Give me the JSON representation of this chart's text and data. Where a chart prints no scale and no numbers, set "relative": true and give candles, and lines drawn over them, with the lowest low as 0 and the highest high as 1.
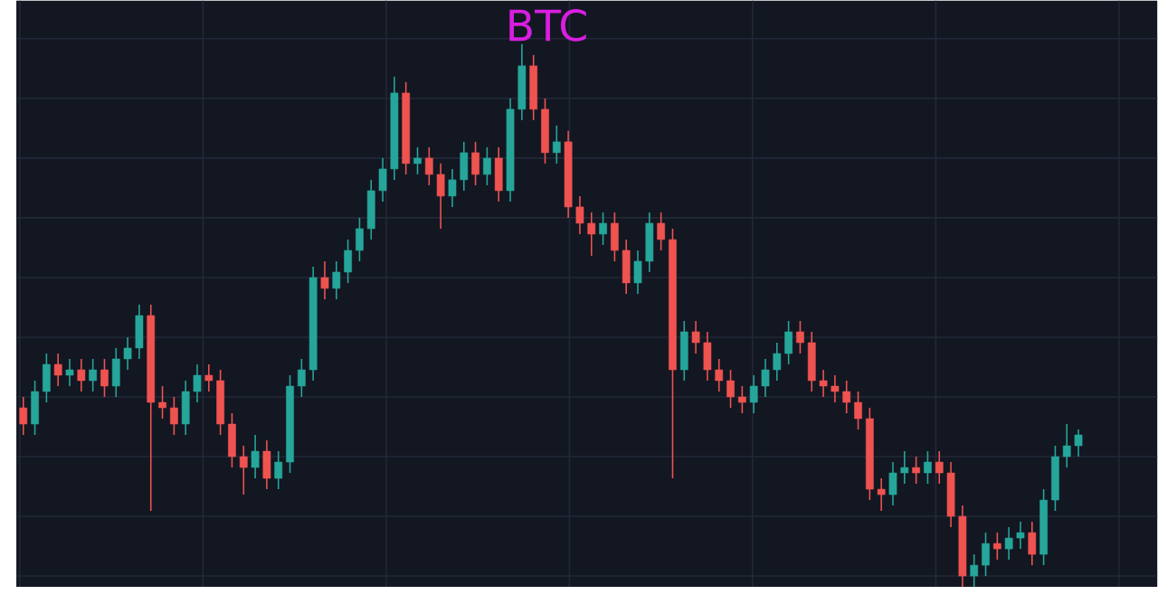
{
  "chart_data": {
    "type": "candlestick",
    "title": "BTC",
    "relative": true,
    "grid": true,
    "tick_labels": false,
    "categories": [
      null,
      null,
      null,
      null,
      null,
      null,
      null,
      null,
      null,
      null,
      null,
      null,
      null,
      null,
      null,
      null,
      null,
      null,
      null,
      null,
      null,
      null,
      null,
      null,
      null,
      null,
      null,
      null,
      null,
      null,
      null,
      null,
      null,
      null,
      null,
      null,
      null,
      null,
      null,
      null,
      null,
      null,
      null,
      null,
      null,
      null,
      null,
      null,
      null,
      null,
      null,
      null,
      null,
      null,
      null,
      null,
      null,
      null,
      null,
      null,
      null,
      null,
      null,
      null,
      null,
      null,
      null,
      null,
      null,
      null,
      null,
      null,
      null,
      null,
      null,
      null,
      null,
      null,
      null,
      null,
      null,
      null,
      null,
      null,
      null,
      null,
      null,
      null,
      null,
      null,
      null,
      null
    ],
    "ohlc": [
      [
        0.33,
        0.35,
        0.28,
        0.3
      ],
      [
        0.3,
        0.38,
        0.28,
        0.36
      ],
      [
        0.36,
        0.43,
        0.34,
        0.41
      ],
      [
        0.41,
        0.43,
        0.37,
        0.39
      ],
      [
        0.39,
        0.42,
        0.37,
        0.4
      ],
      [
        0.4,
        0.42,
        0.36,
        0.38
      ],
      [
        0.38,
        0.42,
        0.36,
        0.4
      ],
      [
        0.4,
        0.42,
        0.35,
        0.37
      ],
      [
        0.37,
        0.44,
        0.35,
        0.42
      ],
      [
        0.42,
        0.46,
        0.4,
        0.44
      ],
      [
        0.44,
        0.52,
        0.42,
        0.5
      ],
      [
        0.5,
        0.52,
        0.14,
        0.34
      ],
      [
        0.34,
        0.37,
        0.31,
        0.33
      ],
      [
        0.33,
        0.35,
        0.28,
        0.3
      ],
      [
        0.3,
        0.38,
        0.28,
        0.36
      ],
      [
        0.36,
        0.41,
        0.34,
        0.39
      ],
      [
        0.39,
        0.41,
        0.36,
        0.38
      ],
      [
        0.38,
        0.4,
        0.28,
        0.3
      ],
      [
        0.3,
        0.32,
        0.22,
        0.24
      ],
      [
        0.24,
        0.26,
        0.17,
        0.22
      ],
      [
        0.22,
        0.28,
        0.2,
        0.25
      ],
      [
        0.25,
        0.27,
        0.18,
        0.2
      ],
      [
        0.2,
        0.25,
        0.18,
        0.23
      ],
      [
        0.23,
        0.39,
        0.21,
        0.37
      ],
      [
        0.37,
        0.42,
        0.35,
        0.4
      ],
      [
        0.4,
        0.59,
        0.38,
        0.57
      ],
      [
        0.57,
        0.6,
        0.53,
        0.55
      ],
      [
        0.55,
        0.6,
        0.53,
        0.58
      ],
      [
        0.58,
        0.64,
        0.56,
        0.62
      ],
      [
        0.62,
        0.68,
        0.6,
        0.66
      ],
      [
        0.66,
        0.75,
        0.64,
        0.73
      ],
      [
        0.73,
        0.79,
        0.71,
        0.77
      ],
      [
        0.77,
        0.94,
        0.75,
        0.91
      ],
      [
        0.91,
        0.93,
        0.76,
        0.78
      ],
      [
        0.78,
        0.81,
        0.76,
        0.79
      ],
      [
        0.79,
        0.81,
        0.74,
        0.76
      ],
      [
        0.76,
        0.78,
        0.66,
        0.72
      ],
      [
        0.72,
        0.77,
        0.7,
        0.75
      ],
      [
        0.75,
        0.82,
        0.73,
        0.8
      ],
      [
        0.8,
        0.82,
        0.74,
        0.76
      ],
      [
        0.76,
        0.81,
        0.74,
        0.79
      ],
      [
        0.79,
        0.81,
        0.71,
        0.73
      ],
      [
        0.73,
        0.9,
        0.71,
        0.88
      ],
      [
        0.88,
        1.0,
        0.86,
        0.96
      ],
      [
        0.96,
        0.98,
        0.86,
        0.88
      ],
      [
        0.88,
        0.9,
        0.78,
        0.8
      ],
      [
        0.8,
        0.85,
        0.78,
        0.82
      ],
      [
        0.82,
        0.84,
        0.68,
        0.7
      ],
      [
        0.7,
        0.72,
        0.65,
        0.67
      ],
      [
        0.67,
        0.69,
        0.61,
        0.65
      ],
      [
        0.65,
        0.69,
        0.63,
        0.67
      ],
      [
        0.67,
        0.69,
        0.6,
        0.62
      ],
      [
        0.62,
        0.64,
        0.54,
        0.56
      ],
      [
        0.56,
        0.62,
        0.54,
        0.6
      ],
      [
        0.6,
        0.69,
        0.58,
        0.67
      ],
      [
        0.67,
        0.69,
        0.62,
        0.64
      ],
      [
        0.64,
        0.66,
        0.2,
        0.4
      ],
      [
        0.4,
        0.49,
        0.38,
        0.47
      ],
      [
        0.47,
        0.49,
        0.43,
        0.45
      ],
      [
        0.45,
        0.47,
        0.38,
        0.4
      ],
      [
        0.4,
        0.42,
        0.36,
        0.38
      ],
      [
        0.38,
        0.4,
        0.33,
        0.35
      ],
      [
        0.35,
        0.37,
        0.32,
        0.34
      ],
      [
        0.34,
        0.39,
        0.32,
        0.37
      ],
      [
        0.37,
        0.42,
        0.35,
        0.4
      ],
      [
        0.4,
        0.45,
        0.38,
        0.43
      ],
      [
        0.43,
        0.49,
        0.41,
        0.47
      ],
      [
        0.47,
        0.49,
        0.43,
        0.45
      ],
      [
        0.45,
        0.47,
        0.36,
        0.38
      ],
      [
        0.38,
        0.4,
        0.35,
        0.37
      ],
      [
        0.37,
        0.39,
        0.34,
        0.36
      ],
      [
        0.36,
        0.38,
        0.32,
        0.34
      ],
      [
        0.34,
        0.36,
        0.29,
        0.31
      ],
      [
        0.31,
        0.33,
        0.16,
        0.18
      ],
      [
        0.18,
        0.2,
        0.14,
        0.17
      ],
      [
        0.17,
        0.23,
        0.15,
        0.21
      ],
      [
        0.21,
        0.25,
        0.19,
        0.22
      ],
      [
        0.22,
        0.24,
        0.19,
        0.21
      ],
      [
        0.21,
        0.25,
        0.19,
        0.23
      ],
      [
        0.23,
        0.25,
        0.19,
        0.21
      ],
      [
        0.21,
        0.23,
        0.11,
        0.13
      ],
      [
        0.13,
        0.15,
        0.0,
        0.02
      ],
      [
        0.02,
        0.06,
        0.0,
        0.04
      ],
      [
        0.04,
        0.1,
        0.02,
        0.08
      ],
      [
        0.08,
        0.1,
        0.05,
        0.07
      ],
      [
        0.07,
        0.11,
        0.05,
        0.09
      ],
      [
        0.09,
        0.12,
        0.07,
        0.1
      ],
      [
        0.1,
        0.12,
        0.04,
        0.06
      ],
      [
        0.06,
        0.18,
        0.04,
        0.16
      ],
      [
        0.16,
        0.26,
        0.14,
        0.24
      ],
      [
        0.24,
        0.3,
        0.22,
        0.26
      ],
      [
        0.26,
        0.29,
        0.24,
        0.28
      ]
    ]
  }
}
